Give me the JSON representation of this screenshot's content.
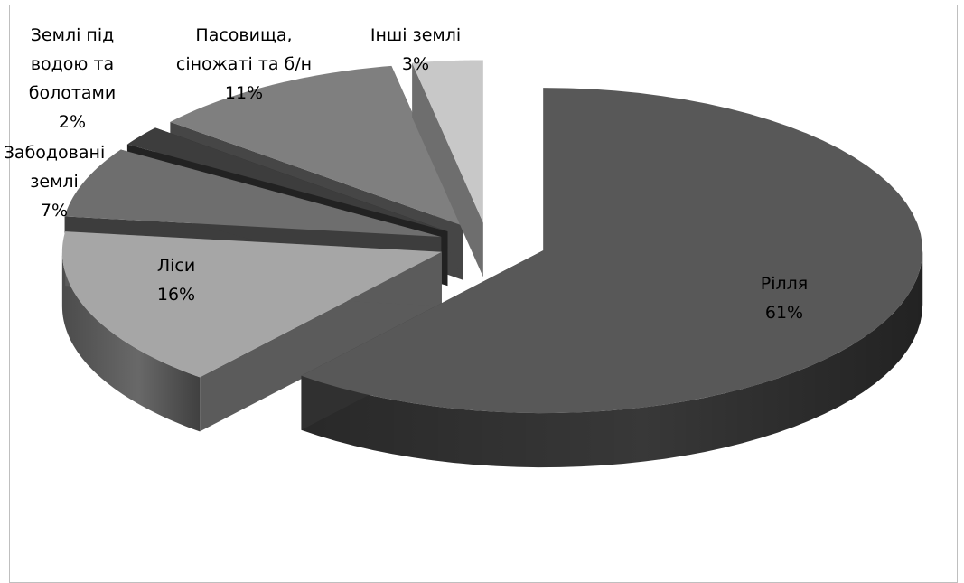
{
  "chart_data": {
    "type": "pie",
    "style": "3d-exploded",
    "title": "",
    "slices": [
      {
        "name": "Рілля",
        "label_lines": [
          "Рілля",
          "61%"
        ],
        "value": 61,
        "percent_label": "61%",
        "color": "#585858"
      },
      {
        "name": "Ліси",
        "label_lines": [
          "Ліси",
          "16%"
        ],
        "value": 16,
        "percent_label": "16%",
        "color": "#a6a6a6"
      },
      {
        "name": "Забодовані землі",
        "label_lines": [
          "Забодовані",
          "землі",
          "7%"
        ],
        "value": 7,
        "percent_label": "7%",
        "color": "#6e6e6e"
      },
      {
        "name": "Землі під водою та болотами",
        "label_lines": [
          "Землі під",
          "водою та",
          "болотами",
          "2%"
        ],
        "value": 2,
        "percent_label": "2%",
        "color": "#3d3d3d"
      },
      {
        "name": "Пасовища, сіножаті та б/н",
        "label_lines": [
          "Пасовища,",
          "сіножаті та б/н",
          "11%"
        ],
        "value": 11,
        "percent_label": "11%",
        "color": "#7f7f7f"
      },
      {
        "name": "Інші землі",
        "label_lines": [
          "Інші землі",
          "3%"
        ],
        "value": 3,
        "percent_label": "3%",
        "color": "#c8c8c8"
      }
    ],
    "legend": "none",
    "data_labels": "category name and percentage"
  }
}
